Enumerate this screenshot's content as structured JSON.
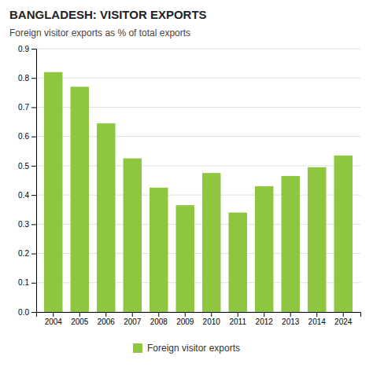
{
  "chart_data": {
    "type": "bar",
    "title": "BANGLADESH: VISITOR EXPORTS",
    "subtitle": "Foreign visitor exports as % of total exports",
    "categories": [
      "2004",
      "2005",
      "2006",
      "2007",
      "2008",
      "2009",
      "2010",
      "2011",
      "2012",
      "2013",
      "2014",
      "2024"
    ],
    "series": [
      {
        "name": "Foreign visitor exports",
        "color": "#8dc63f",
        "values": [
          0.82,
          0.77,
          0.645,
          0.525,
          0.425,
          0.365,
          0.475,
          0.34,
          0.43,
          0.465,
          0.495,
          0.535
        ]
      }
    ],
    "ylim": [
      0,
      0.9
    ],
    "yticks": [
      {
        "value": 0,
        "label": "0.0"
      },
      0.1,
      0.2,
      0.3,
      0.4,
      0.5,
      0.6,
      0.7,
      0.8,
      0.9
    ],
    "grid": true,
    "legend": "bottom"
  }
}
